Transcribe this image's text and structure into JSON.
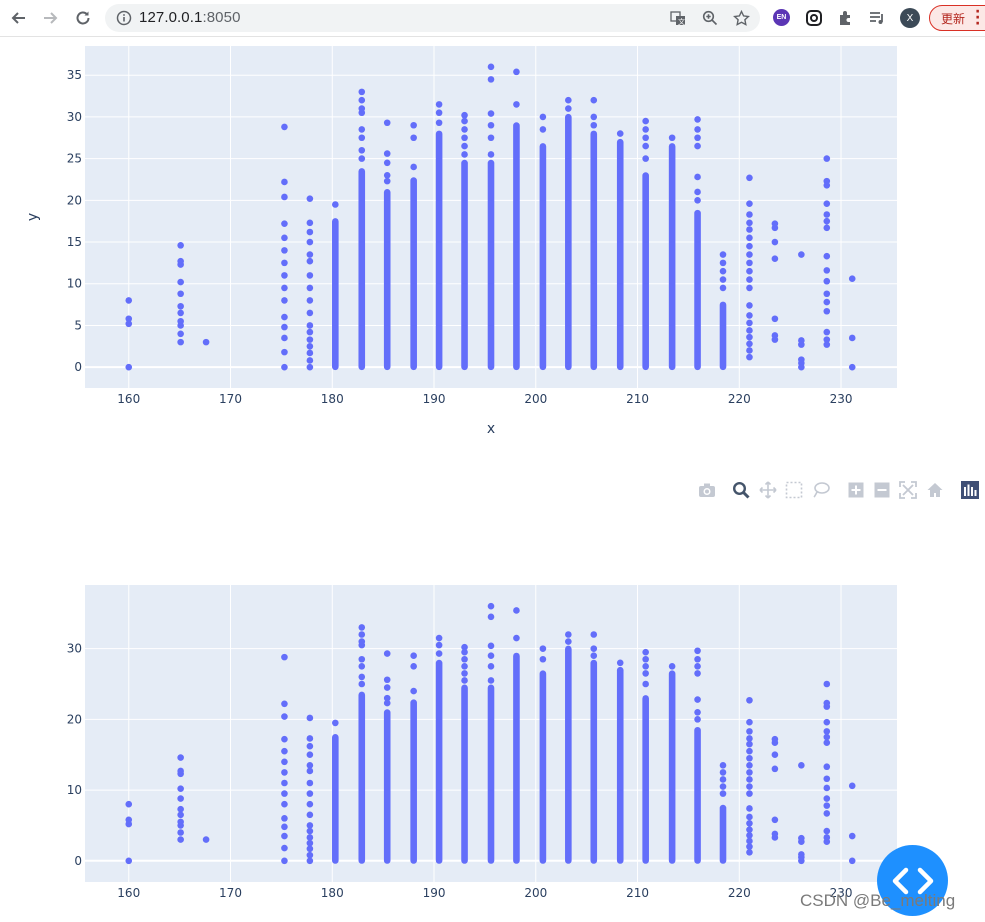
{
  "browser": {
    "url_host": "127.0.0.1",
    "url_port": ":8050",
    "update_label": "更新",
    "extension_label": "EN",
    "profile_initial": "X",
    "back_icon": "arrow-left-icon",
    "forward_icon": "arrow-right-icon",
    "reload_icon": "reload-icon",
    "info_icon": "info-icon",
    "translate_icon": "translate-icon",
    "zoom_icon": "zoom-icon",
    "bookmark_icon": "star-icon",
    "puzzle_icon": "extensions-icon",
    "media_icon": "media-queue-icon",
    "menu_icon": "kebab-menu-icon"
  },
  "modebar": {
    "buttons": [
      "camera-icon",
      "zoom-icon",
      "pan-icon",
      "box-select-icon",
      "lasso-select-icon",
      "zoom-in-icon",
      "zoom-out-icon",
      "autoscale-icon",
      "reset-axes-icon",
      "plotly-logo-icon"
    ]
  },
  "colors": {
    "marker": "#636efa",
    "plot_bg": "#e5ecf6",
    "grid": "#ffffff",
    "text": "#2a3f5f",
    "fab": "#1e90ff",
    "update_border": "#d93025"
  },
  "chart_data": [
    {
      "type": "scatter",
      "xlabel": "x",
      "ylabel": "y",
      "xlim": [
        155.7,
        235.5
      ],
      "ylim": [
        -2.5,
        38.5
      ],
      "xticks": [
        160,
        170,
        180,
        190,
        200,
        210,
        220,
        230
      ],
      "yticks": [
        0,
        5,
        10,
        15,
        20,
        25,
        30,
        35
      ],
      "grid": true,
      "legend": "none",
      "series": [
        {
          "columns": [
            {
              "x": 160.0,
              "max": 8.0,
              "points": [
                0,
                5.2,
                5.8,
                8.0
              ]
            },
            {
              "x": 165.1,
              "max": 14.6,
              "points": [
                3.0,
                4.0,
                5.0,
                5.5,
                6.5,
                7.3,
                8.8,
                10.2,
                12.3,
                12.7,
                14.6
              ]
            },
            {
              "x": 167.6,
              "max": 3.0,
              "points": [
                3.0
              ]
            },
            {
              "x": 175.3,
              "max": 28.8,
              "points": [
                0,
                1.8,
                3.5,
                4.8,
                6.0,
                8.0,
                9.5,
                11.0,
                12.5,
                14.0,
                15.5,
                17.2,
                20.4,
                22.2,
                28.8
              ]
            },
            {
              "x": 177.8,
              "max": 20.2,
              "points": [
                0,
                0.8,
                1.7,
                2.5,
                3.3,
                4.2,
                5.0,
                6.5,
                8.0,
                9.5,
                11.0,
                12.7,
                13.5,
                15.0,
                16.2,
                17.3,
                20.2
              ]
            },
            {
              "x": 180.3,
              "max": 19.5,
              "dense_to": 17.5,
              "points": [
                19.5
              ]
            },
            {
              "x": 182.9,
              "max": 33.0,
              "dense_to": 23.5,
              "points": [
                25.0,
                26.0,
                27.5,
                28.5,
                30.5,
                31.0,
                32.0,
                33.0
              ]
            },
            {
              "x": 185.4,
              "max": 29.3,
              "dense_to": 21.0,
              "points": [
                22.3,
                23.0,
                24.5,
                25.6,
                29.3
              ]
            },
            {
              "x": 188.0,
              "max": 29.0,
              "dense_to": 22.4,
              "points": [
                24.0,
                27.5,
                29.0
              ]
            },
            {
              "x": 190.5,
              "max": 31.5,
              "dense_to": 28.0,
              "points": [
                29.3,
                30.5,
                31.5
              ]
            },
            {
              "x": 193.0,
              "max": 30.2,
              "dense_to": 24.5,
              "points": [
                25.5,
                26.5,
                27.5,
                28.5,
                29.5,
                30.2
              ]
            },
            {
              "x": 195.6,
              "max": 36.0,
              "dense_to": 24.5,
              "points": [
                25.5,
                27.5,
                29.0,
                30.4,
                34.5,
                36.0
              ]
            },
            {
              "x": 198.1,
              "max": 35.4,
              "dense_to": 29.0,
              "points": [
                31.5,
                35.4
              ]
            },
            {
              "x": 200.7,
              "max": 30.0,
              "dense_to": 26.5,
              "points": [
                28.5,
                30.0
              ]
            },
            {
              "x": 203.2,
              "max": 32.0,
              "dense_to": 30.0,
              "points": [
                31.0,
                32.0
              ]
            },
            {
              "x": 205.7,
              "max": 32.0,
              "dense_to": 28.0,
              "points": [
                29.0,
                30.0,
                32.0
              ]
            },
            {
              "x": 208.3,
              "max": 28.0,
              "dense_to": 27.0,
              "points": [
                28.0
              ]
            },
            {
              "x": 210.8,
              "max": 29.5,
              "dense_to": 23.0,
              "points": [
                25.0,
                26.5,
                27.5,
                28.5,
                29.5
              ]
            },
            {
              "x": 213.4,
              "max": 27.5,
              "dense_to": 26.5,
              "points": [
                27.5
              ]
            },
            {
              "x": 215.9,
              "max": 29.7,
              "dense_to": 18.5,
              "points": [
                20.0,
                21.0,
                22.8,
                26.5,
                27.5,
                28.5,
                29.7
              ]
            },
            {
              "x": 218.4,
              "max": 13.5,
              "dense_to": 7.5,
              "points": [
                9.5,
                10.5,
                11.5,
                12.5,
                13.5
              ]
            },
            {
              "x": 221.0,
              "max": 22.7,
              "points": [
                1.2,
                2.0,
                2.8,
                3.6,
                4.4,
                5.3,
                6.2,
                7.4,
                9.5,
                10.5,
                11.5,
                12.5,
                13.5,
                14.5,
                15.5,
                16.5,
                17.3,
                18.3,
                19.6,
                22.7
              ]
            },
            {
              "x": 223.5,
              "max": 17.2,
              "points": [
                3.3,
                3.8,
                5.8,
                13.0,
                15.0,
                16.7,
                17.2
              ]
            },
            {
              "x": 226.1,
              "max": 13.5,
              "points": [
                0,
                0.5,
                0.9,
                2.7,
                3.2,
                13.5
              ]
            },
            {
              "x": 228.6,
              "max": 25.0,
              "points": [
                2.7,
                3.3,
                4.2,
                6.7,
                7.8,
                8.8,
                10.3,
                11.6,
                13.3,
                16.7,
                17.5,
                18.3,
                19.6,
                21.8,
                22.3,
                25.0
              ]
            },
            {
              "x": 231.1,
              "max": 10.6,
              "points": [
                0,
                3.5,
                10.6
              ]
            }
          ]
        }
      ]
    },
    {
      "type": "scatter",
      "xlabel": "",
      "ylabel": "",
      "xlim": [
        155.7,
        235.5
      ],
      "ylim": [
        -3.0,
        39.0
      ],
      "xticks": [
        160,
        170,
        180,
        190,
        200,
        210,
        220,
        230
      ],
      "yticks": [
        0,
        10,
        20,
        30
      ],
      "grid": true,
      "legend": "none",
      "series": [
        {
          "columns": [
            {
              "x": 160.0,
              "max": 8.0,
              "points": [
                0,
                5.2,
                5.8,
                8.0
              ]
            },
            {
              "x": 165.1,
              "max": 14.6,
              "points": [
                3.0,
                4.0,
                5.0,
                5.5,
                6.5,
                7.3,
                8.8,
                10.2,
                12.3,
                12.7,
                14.6
              ]
            },
            {
              "x": 167.6,
              "max": 3.0,
              "points": [
                3.0
              ]
            },
            {
              "x": 175.3,
              "max": 28.8,
              "points": [
                0,
                1.8,
                3.5,
                4.8,
                6.0,
                8.0,
                9.5,
                11.0,
                12.5,
                14.0,
                15.5,
                17.2,
                20.4,
                22.2,
                28.8
              ]
            },
            {
              "x": 177.8,
              "max": 20.2,
              "points": [
                0,
                0.8,
                1.7,
                2.5,
                3.3,
                4.2,
                5.0,
                6.5,
                8.0,
                9.5,
                11.0,
                12.7,
                13.5,
                15.0,
                16.2,
                17.3,
                20.2
              ]
            },
            {
              "x": 180.3,
              "max": 19.5,
              "dense_to": 17.5,
              "points": [
                19.5
              ]
            },
            {
              "x": 182.9,
              "max": 33.0,
              "dense_to": 23.5,
              "points": [
                25.0,
                26.0,
                27.5,
                28.5,
                30.5,
                31.0,
                32.0,
                33.0
              ]
            },
            {
              "x": 185.4,
              "max": 29.3,
              "dense_to": 21.0,
              "points": [
                22.3,
                23.0,
                24.5,
                25.6,
                29.3
              ]
            },
            {
              "x": 188.0,
              "max": 29.0,
              "dense_to": 22.4,
              "points": [
                24.0,
                27.5,
                29.0
              ]
            },
            {
              "x": 190.5,
              "max": 31.5,
              "dense_to": 28.0,
              "points": [
                29.3,
                30.5,
                31.5
              ]
            },
            {
              "x": 193.0,
              "max": 30.2,
              "dense_to": 24.5,
              "points": [
                25.5,
                26.5,
                27.5,
                28.5,
                29.5,
                30.2
              ]
            },
            {
              "x": 195.6,
              "max": 36.0,
              "dense_to": 24.5,
              "points": [
                25.5,
                27.5,
                29.0,
                30.4,
                34.5,
                36.0
              ]
            },
            {
              "x": 198.1,
              "max": 35.4,
              "dense_to": 29.0,
              "points": [
                31.5,
                35.4
              ]
            },
            {
              "x": 200.7,
              "max": 30.0,
              "dense_to": 26.5,
              "points": [
                28.5,
                30.0
              ]
            },
            {
              "x": 203.2,
              "max": 32.0,
              "dense_to": 30.0,
              "points": [
                31.0,
                32.0
              ]
            },
            {
              "x": 205.7,
              "max": 32.0,
              "dense_to": 28.0,
              "points": [
                29.0,
                30.0,
                32.0
              ]
            },
            {
              "x": 208.3,
              "max": 28.0,
              "dense_to": 27.0,
              "points": [
                28.0
              ]
            },
            {
              "x": 210.8,
              "max": 29.5,
              "dense_to": 23.0,
              "points": [
                25.0,
                26.5,
                27.5,
                28.5,
                29.5
              ]
            },
            {
              "x": 213.4,
              "max": 27.5,
              "dense_to": 26.5,
              "points": [
                27.5
              ]
            },
            {
              "x": 215.9,
              "max": 29.7,
              "dense_to": 18.5,
              "points": [
                20.0,
                21.0,
                22.8,
                26.5,
                27.5,
                28.5,
                29.7
              ]
            },
            {
              "x": 218.4,
              "max": 13.5,
              "dense_to": 7.5,
              "points": [
                9.5,
                10.5,
                11.5,
                12.5,
                13.5
              ]
            },
            {
              "x": 221.0,
              "max": 22.7,
              "points": [
                1.2,
                2.0,
                2.8,
                3.6,
                4.4,
                5.3,
                6.2,
                7.4,
                9.5,
                10.5,
                11.5,
                12.5,
                13.5,
                14.5,
                15.5,
                16.5,
                17.3,
                18.3,
                19.6,
                22.7
              ]
            },
            {
              "x": 223.5,
              "max": 17.2,
              "points": [
                3.3,
                3.8,
                5.8,
                13.0,
                15.0,
                16.7,
                17.2
              ]
            },
            {
              "x": 226.1,
              "max": 13.5,
              "points": [
                0,
                0.5,
                0.9,
                2.7,
                3.2,
                13.5
              ]
            },
            {
              "x": 228.6,
              "max": 25.0,
              "points": [
                2.7,
                3.3,
                4.2,
                6.7,
                7.8,
                8.8,
                10.3,
                11.6,
                13.3,
                16.7,
                17.5,
                18.3,
                19.6,
                21.8,
                22.3,
                25.0
              ]
            },
            {
              "x": 231.1,
              "max": 10.6,
              "points": [
                0,
                3.5,
                10.6
              ]
            }
          ]
        }
      ]
    }
  ],
  "watermark": "CSDN @Be_melting"
}
